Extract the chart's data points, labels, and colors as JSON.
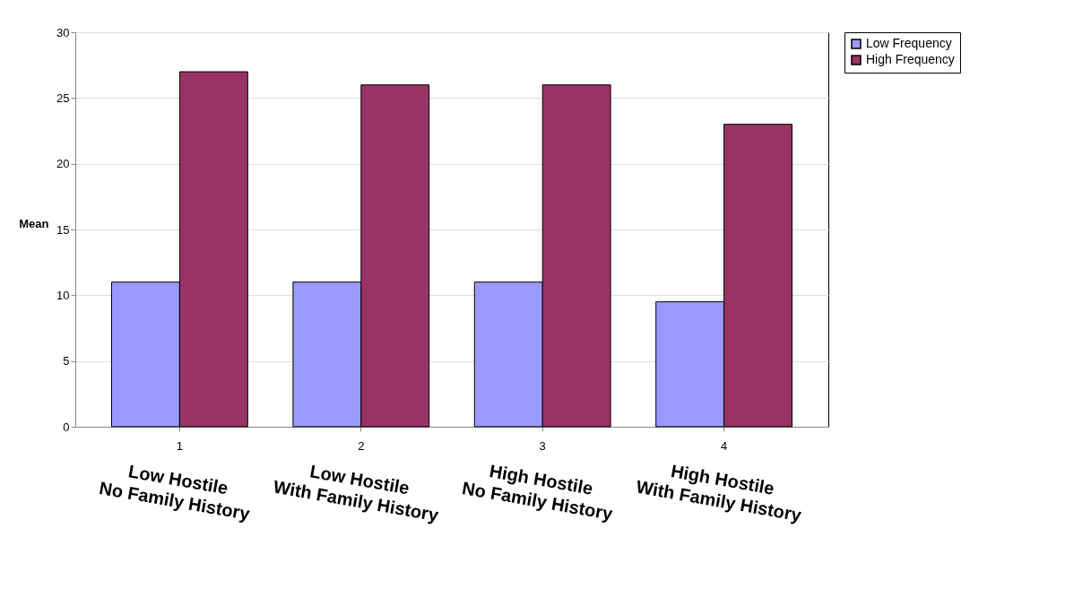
{
  "chart_data": {
    "type": "bar",
    "ylabel": "Mean",
    "categories": [
      "1",
      "2",
      "3",
      "4"
    ],
    "series": [
      {
        "name": "Low Frequency",
        "color": "#9999ff",
        "values": [
          11,
          11,
          11,
          9.5
        ]
      },
      {
        "name": "High Frequency",
        "color": "#993366",
        "values": [
          27,
          26,
          26,
          23
        ]
      }
    ],
    "ylim": [
      0,
      30
    ],
    "yticks": [
      0,
      5,
      10,
      15,
      20,
      25,
      30
    ],
    "grid": "y",
    "legend": "right",
    "annotations": [
      "Low Hostile\nNo Family History",
      "Low Hostile\nWith Family History",
      "High Hostile\nNo Family History",
      "High Hostile\nWith Family History"
    ]
  }
}
